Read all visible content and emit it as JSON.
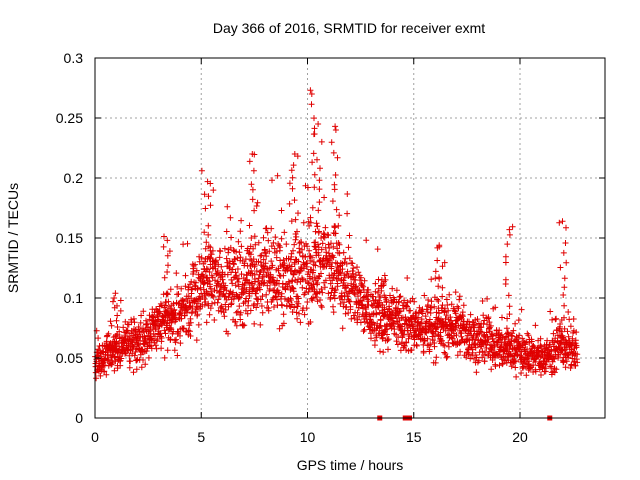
{
  "chart_data": {
    "type": "scatter",
    "title": "Day 366 of 2016, SRMTID for receiver exmt",
    "xlabel": "GPS time / hours",
    "ylabel": "SRMTID / TECUs",
    "xlim": [
      0,
      24
    ],
    "ylim": [
      0,
      0.3
    ],
    "xticks": [
      0,
      5,
      10,
      15,
      20
    ],
    "xtick_labels": [
      "0",
      "5",
      "10",
      "15",
      "20"
    ],
    "yticks": [
      0,
      0.05,
      0.1,
      0.15,
      0.2,
      0.25,
      0.3
    ],
    "ytick_labels": [
      "0",
      "0.05",
      "0.1",
      "0.15",
      "0.2",
      "0.25",
      "0.3"
    ],
    "grid": true,
    "marker_color": "#e00000",
    "series": [
      {
        "name": "SRMTID",
        "marker": "plus",
        "profile_note": "dense cloud of plus markers; values approximated from plot",
        "x_range": [
          0,
          22.7
        ],
        "trend_points": [
          {
            "x": 0.0,
            "y": 0.048
          },
          {
            "x": 1.0,
            "y": 0.058
          },
          {
            "x": 2.0,
            "y": 0.065
          },
          {
            "x": 3.0,
            "y": 0.075
          },
          {
            "x": 4.0,
            "y": 0.085
          },
          {
            "x": 5.0,
            "y": 0.11
          },
          {
            "x": 6.0,
            "y": 0.115
          },
          {
            "x": 7.0,
            "y": 0.11
          },
          {
            "x": 8.0,
            "y": 0.12
          },
          {
            "x": 9.0,
            "y": 0.115
          },
          {
            "x": 10.0,
            "y": 0.12
          },
          {
            "x": 11.0,
            "y": 0.13
          },
          {
            "x": 12.0,
            "y": 0.11
          },
          {
            "x": 13.0,
            "y": 0.085
          },
          {
            "x": 14.0,
            "y": 0.08
          },
          {
            "x": 15.0,
            "y": 0.075
          },
          {
            "x": 16.0,
            "y": 0.075
          },
          {
            "x": 17.0,
            "y": 0.075
          },
          {
            "x": 18.0,
            "y": 0.065
          },
          {
            "x": 19.0,
            "y": 0.06
          },
          {
            "x": 20.0,
            "y": 0.055
          },
          {
            "x": 21.0,
            "y": 0.05
          },
          {
            "x": 22.0,
            "y": 0.06
          },
          {
            "x": 22.7,
            "y": 0.055
          }
        ],
        "peaks": [
          {
            "x": 0.9,
            "y": 0.1
          },
          {
            "x": 3.4,
            "y": 0.148
          },
          {
            "x": 5.3,
            "y": 0.197
          },
          {
            "x": 7.4,
            "y": 0.22
          },
          {
            "x": 9.4,
            "y": 0.22
          },
          {
            "x": 10.2,
            "y": 0.27
          },
          {
            "x": 10.5,
            "y": 0.245
          },
          {
            "x": 11.3,
            "y": 0.243
          },
          {
            "x": 13.5,
            "y": 0.115
          },
          {
            "x": 16.2,
            "y": 0.144
          },
          {
            "x": 19.5,
            "y": 0.157
          },
          {
            "x": 22.0,
            "y": 0.164
          }
        ],
        "baseline_flags_x": [
          13.4,
          14.6,
          14.8,
          21.4
        ]
      }
    ]
  }
}
